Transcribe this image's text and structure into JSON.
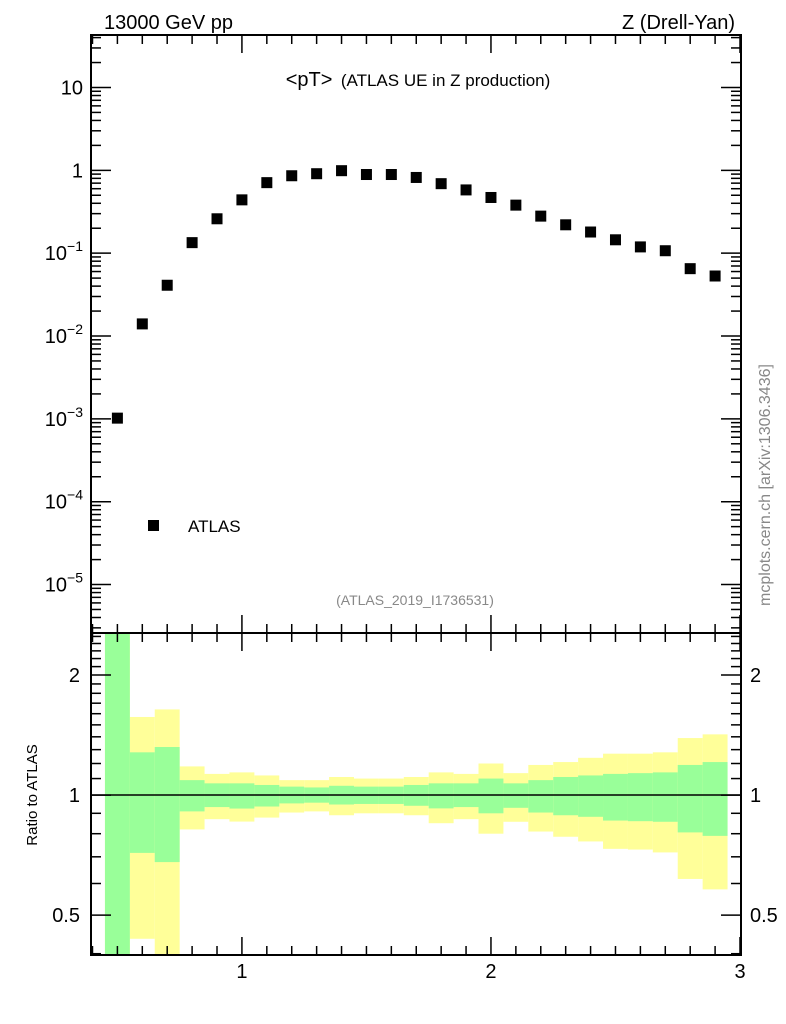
{
  "header": {
    "left": "13000 GeV pp",
    "right": "Z (Drell-Yan)"
  },
  "title_main": "<pT>",
  "title_sub": "(ATLAS UE in Z production)",
  "analysis_id": "(ATLAS_2019_I1736531)",
  "side_label": "mcplots.cern.ch [arXiv:1306.3436]",
  "legend": {
    "label": "ATLAS"
  },
  "ratio_ylabel": "Ratio to ATLAS",
  "colors": {
    "marker": "#000000",
    "stat_band": "#99ff99",
    "total_band": "#ffff99",
    "text_grey": "#888888"
  },
  "chart_data": [
    {
      "type": "scatter",
      "panel": "main",
      "title": "<pT> (ATLAS UE in Z production)",
      "yscale": "log",
      "xlim": [
        0.394,
        3.004
      ],
      "ylim": [
        2.6e-06,
        43
      ],
      "ytick_labels": [
        "10^-5",
        "10^-4",
        "10^-3",
        "10^-2",
        "10^-1",
        "1",
        "10"
      ],
      "ytick_values": [
        1e-05,
        0.0001,
        0.001,
        0.01,
        0.1,
        1,
        10
      ],
      "legend_position": "lower-left",
      "series": [
        {
          "name": "ATLAS",
          "x": [
            0.5,
            0.6,
            0.7,
            0.8,
            0.9,
            1.0,
            1.1,
            1.2,
            1.3,
            1.4,
            1.5,
            1.6,
            1.7,
            1.8,
            1.9,
            2.0,
            2.1,
            2.2,
            2.3,
            2.4,
            2.5,
            2.6,
            2.7,
            2.8,
            2.9
          ],
          "y": [
            0.00102,
            0.014,
            0.041,
            0.134,
            0.26,
            0.44,
            0.71,
            0.86,
            0.91,
            0.99,
            0.89,
            0.89,
            0.82,
            0.69,
            0.58,
            0.47,
            0.38,
            0.28,
            0.22,
            0.18,
            0.145,
            0.119,
            0.107,
            0.065,
            0.053
          ]
        }
      ]
    },
    {
      "type": "area",
      "panel": "ratio",
      "ylabel": "Ratio to ATLAS",
      "yscale": "log",
      "xlim": [
        0.394,
        3.004
      ],
      "ylim": [
        0.397,
        2.55
      ],
      "xtick_labels": [
        "1",
        "2",
        "3"
      ],
      "xtick_values": [
        1,
        2,
        3
      ],
      "ytick_labels": [
        "0.5",
        "1",
        "2"
      ],
      "ytick_values": [
        0.5,
        1,
        2
      ],
      "bin_width": 0.1,
      "x": [
        0.5,
        0.6,
        0.7,
        0.8,
        0.9,
        1.0,
        1.1,
        1.2,
        1.3,
        1.4,
        1.5,
        1.6,
        1.7,
        1.8,
        1.9,
        2.0,
        2.1,
        2.2,
        2.3,
        2.4,
        2.5,
        2.6,
        2.7,
        2.8,
        2.9
      ],
      "series": [
        {
          "name": "total_uncertainty",
          "low": [
            0.3,
            0.436,
            0.35,
            0.82,
            0.87,
            0.858,
            0.878,
            0.904,
            0.91,
            0.89,
            0.9,
            0.9,
            0.89,
            0.85,
            0.87,
            0.8,
            0.857,
            0.81,
            0.786,
            0.765,
            0.733,
            0.73,
            0.718,
            0.616,
            0.58
          ],
          "high": [
            3.0,
            1.57,
            1.64,
            1.18,
            1.13,
            1.14,
            1.12,
            1.09,
            1.09,
            1.11,
            1.1,
            1.1,
            1.11,
            1.14,
            1.13,
            1.2,
            1.135,
            1.19,
            1.21,
            1.24,
            1.27,
            1.27,
            1.28,
            1.39,
            1.42
          ]
        },
        {
          "name": "stat_uncertainty",
          "low": [
            0.3,
            0.716,
            0.679,
            0.91,
            0.933,
            0.925,
            0.936,
            0.953,
            0.957,
            0.947,
            0.95,
            0.95,
            0.94,
            0.926,
            0.933,
            0.9,
            0.929,
            0.904,
            0.89,
            0.882,
            0.863,
            0.86,
            0.857,
            0.806,
            0.79
          ],
          "high": [
            3.0,
            1.28,
            1.32,
            1.09,
            1.07,
            1.07,
            1.06,
            1.05,
            1.045,
            1.055,
            1.05,
            1.05,
            1.06,
            1.07,
            1.07,
            1.1,
            1.07,
            1.09,
            1.11,
            1.12,
            1.13,
            1.135,
            1.14,
            1.19,
            1.21
          ]
        }
      ]
    }
  ]
}
